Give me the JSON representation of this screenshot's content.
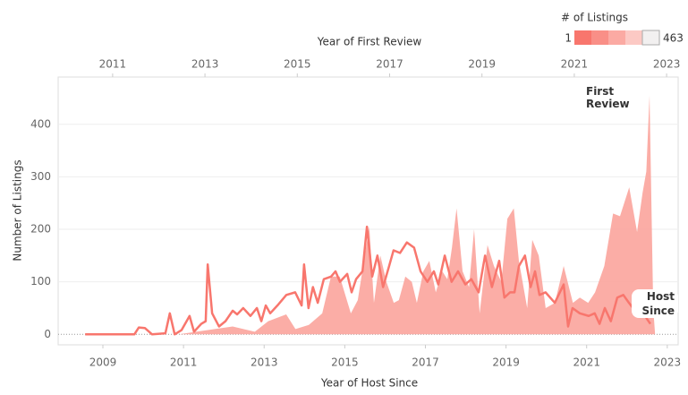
{
  "chart_data": {
    "type": "area-line",
    "ylabel": "Number of Listings",
    "ylim": [
      -20,
      490
    ],
    "yticks": [
      0,
      100,
      200,
      300,
      400
    ],
    "xlabel": "Year of Host Since",
    "xlim": [
      2007.89,
      2023.27
    ],
    "xticks": [
      2009,
      2011,
      2013,
      2015,
      2017,
      2019,
      2021,
      2023
    ],
    "x2label": "Year of First Review",
    "x2lim": [
      2009.82,
      2023.25
    ],
    "x2ticks": [
      2011,
      2013,
      2015,
      2017,
      2019,
      2021,
      2023
    ],
    "grid": true,
    "legend": {
      "title": "# of Listings",
      "min": 1,
      "max": 463,
      "colors": [
        "#f8766d",
        "#f98f87",
        "#fbaaa3",
        "#fcc9c4",
        "#f2f0f0"
      ]
    },
    "series": [
      {
        "name": "First Review",
        "mark": "area",
        "axis": "x2",
        "color": "#fba49c",
        "x": [
          2012.43,
          2013.21,
          2013.6,
          2014.08,
          2014.37,
          2014.76,
          2014.96,
          2015.25,
          2015.54,
          2015.73,
          2015.92,
          2016.16,
          2016.31,
          2016.56,
          2016.66,
          2016.8,
          2016.93,
          2017.09,
          2017.2,
          2017.34,
          2017.48,
          2017.59,
          2017.73,
          2017.86,
          2018.0,
          2018.14,
          2018.25,
          2018.35,
          2018.45,
          2018.58,
          2018.72,
          2018.83,
          2018.95,
          2019.12,
          2019.26,
          2019.42,
          2019.55,
          2019.69,
          2019.8,
          2019.98,
          2020.09,
          2020.23,
          2020.38,
          2020.58,
          2020.77,
          2020.97,
          2021.12,
          2021.3,
          2021.45,
          2021.65,
          2021.84,
          2021.99,
          2022.19,
          2022.36,
          2022.48,
          2022.56,
          2022.63,
          2022.71,
          2022.75
        ],
        "values": [
          0,
          10,
          15,
          5,
          25,
          38,
          10,
          18,
          40,
          110,
          110,
          40,
          65,
          205,
          60,
          150,
          100,
          60,
          65,
          110,
          100,
          60,
          120,
          140,
          80,
          120,
          105,
          165,
          240,
          120,
          90,
          200,
          40,
          170,
          130,
          100,
          220,
          240,
          140,
          50,
          180,
          150,
          50,
          60,
          130,
          60,
          70,
          60,
          80,
          130,
          230,
          225,
          280,
          195,
          270,
          310,
          455,
          50,
          0
        ]
      },
      {
        "name": "Host Since",
        "mark": "line",
        "axis": "x",
        "color": "#f8766d",
        "x": [
          2008.56,
          2009.78,
          2009.89,
          2010.04,
          2010.22,
          2010.55,
          2010.66,
          2010.78,
          2010.95,
          2011.15,
          2011.26,
          2011.44,
          2011.55,
          2011.6,
          2011.71,
          2011.88,
          2012.04,
          2012.22,
          2012.33,
          2012.48,
          2012.66,
          2012.82,
          2012.93,
          2013.04,
          2013.15,
          2013.33,
          2013.55,
          2013.77,
          2013.93,
          2013.99,
          2014.1,
          2014.21,
          2014.33,
          2014.48,
          2014.66,
          2014.77,
          2014.88,
          2015.06,
          2015.17,
          2015.28,
          2015.44,
          2015.55,
          2015.68,
          2015.81,
          2015.95,
          2016.1,
          2016.21,
          2016.37,
          2016.54,
          2016.72,
          2016.88,
          2017.05,
          2017.21,
          2017.32,
          2017.48,
          2017.65,
          2017.81,
          2017.99,
          2018.14,
          2018.32,
          2018.48,
          2018.65,
          2018.83,
          2018.96,
          2019.1,
          2019.21,
          2019.32,
          2019.47,
          2019.61,
          2019.72,
          2019.83,
          2019.98,
          2020.21,
          2020.43,
          2020.54,
          2020.65,
          2020.83,
          2021.05,
          2021.2,
          2021.32,
          2021.45,
          2021.6,
          2021.76,
          2021.91,
          2022.05,
          2022.2,
          2022.36,
          2022.49,
          2022.58
        ],
        "values": [
          0,
          0,
          13,
          12,
          0,
          2,
          40,
          0,
          8,
          35,
          5,
          20,
          25,
          133,
          40,
          15,
          25,
          45,
          38,
          50,
          35,
          50,
          25,
          55,
          40,
          55,
          75,
          80,
          55,
          133,
          50,
          90,
          60,
          105,
          110,
          120,
          100,
          115,
          80,
          105,
          120,
          205,
          110,
          150,
          90,
          130,
          160,
          155,
          175,
          165,
          120,
          100,
          120,
          95,
          150,
          100,
          120,
          95,
          105,
          80,
          150,
          90,
          140,
          70,
          80,
          80,
          130,
          150,
          90,
          120,
          75,
          80,
          60,
          95,
          15,
          50,
          40,
          35,
          40,
          20,
          50,
          25,
          70,
          75,
          60,
          45,
          50,
          30,
          20
        ]
      }
    ]
  }
}
